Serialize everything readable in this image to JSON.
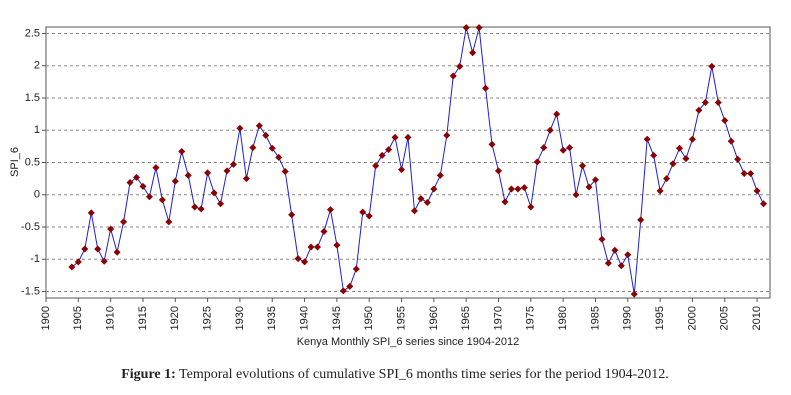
{
  "chart_data": {
    "type": "line",
    "xlabel": "Kenya Monthly SPI_6 series since 1904-2012",
    "ylabel": "SPI_6",
    "x": [
      1904,
      1905,
      1906,
      1907,
      1908,
      1909,
      1910,
      1911,
      1912,
      1913,
      1914,
      1915,
      1916,
      1917,
      1918,
      1919,
      1920,
      1921,
      1922,
      1923,
      1924,
      1925,
      1926,
      1927,
      1928,
      1929,
      1930,
      1931,
      1932,
      1933,
      1934,
      1935,
      1936,
      1937,
      1938,
      1939,
      1940,
      1941,
      1942,
      1943,
      1944,
      1945,
      1946,
      1947,
      1948,
      1949,
      1950,
      1951,
      1952,
      1953,
      1954,
      1955,
      1956,
      1957,
      1958,
      1959,
      1960,
      1961,
      1962,
      1963,
      1964,
      1965,
      1966,
      1967,
      1968,
      1969,
      1970,
      1971,
      1972,
      1973,
      1974,
      1975,
      1976,
      1977,
      1978,
      1979,
      1980,
      1981,
      1982,
      1983,
      1984,
      1985,
      1986,
      1987,
      1988,
      1989,
      1990,
      1991,
      1992,
      1993,
      1994,
      1995,
      1996,
      1997,
      1998,
      1999,
      2000,
      2001,
      2002,
      2003,
      2004,
      2005,
      2006,
      2007,
      2008,
      2009,
      2010,
      2011
    ],
    "series": [
      {
        "name": "SPI_6",
        "color": "#1f1fd0",
        "marker_color": "#8b0000",
        "values": [
          -1.12,
          -1.04,
          -0.84,
          -0.28,
          -0.84,
          -1.03,
          -0.53,
          -0.89,
          -0.42,
          0.19,
          0.27,
          0.13,
          -0.03,
          0.42,
          -0.08,
          -0.42,
          0.21,
          0.67,
          0.3,
          -0.19,
          -0.22,
          0.34,
          0.03,
          -0.14,
          0.37,
          0.47,
          1.03,
          0.25,
          0.73,
          1.07,
          0.92,
          0.72,
          0.58,
          0.36,
          -0.31,
          -0.99,
          -1.04,
          -0.81,
          -0.81,
          -0.57,
          -0.23,
          -0.78,
          -1.49,
          -1.42,
          -1.15,
          -0.27,
          -0.33,
          0.45,
          0.61,
          0.7,
          0.89,
          0.39,
          0.89,
          -0.25,
          -0.06,
          -0.12,
          0.09,
          0.3,
          0.92,
          1.84,
          1.99,
          2.59,
          2.2,
          2.59,
          1.65,
          0.78,
          0.37,
          -0.11,
          0.09,
          0.09,
          0.11,
          -0.19,
          0.51,
          0.73,
          1.0,
          1.25,
          0.69,
          0.73,
          0.0,
          0.45,
          0.12,
          0.23,
          -0.69,
          -1.06,
          -0.86,
          -1.1,
          -0.93,
          -1.54,
          -0.39,
          0.86,
          0.61,
          0.06,
          0.25,
          0.48,
          0.72,
          0.56,
          0.86,
          1.31,
          1.43,
          1.99,
          1.43,
          1.15,
          0.83,
          0.55,
          0.33,
          0.33,
          0.06,
          -0.14
        ]
      }
    ],
    "xlim": [
      1900,
      2012
    ],
    "xticks": [
      1900,
      1905,
      1910,
      1915,
      1920,
      1925,
      1930,
      1935,
      1940,
      1945,
      1950,
      1955,
      1960,
      1965,
      1970,
      1975,
      1980,
      1985,
      1990,
      1995,
      2000,
      2005,
      2010
    ],
    "ylim": [
      -1.6,
      2.6
    ],
    "yticks": [
      -1.5,
      -1,
      -0.5,
      0,
      0.5,
      1,
      1.5,
      2,
      2.5
    ],
    "grid": true
  },
  "caption": {
    "label": "Figure 1:",
    "text": "Temporal evolutions of cumulative SPI_6 months time series for the period 1904-2012."
  }
}
